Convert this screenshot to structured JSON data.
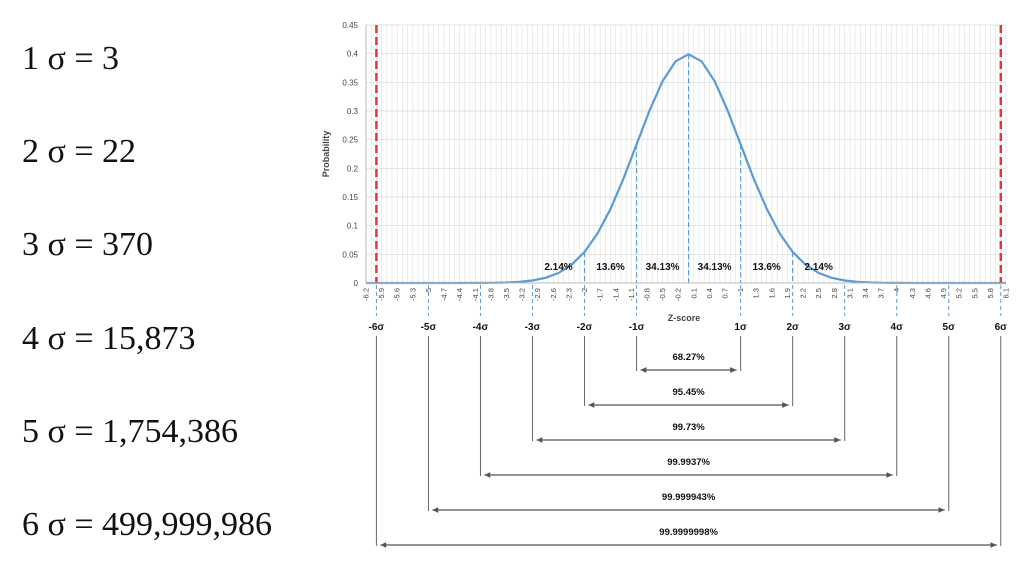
{
  "sigma_list": [
    {
      "label": "1 σ = 3"
    },
    {
      "label": "2 σ = 22"
    },
    {
      "label": "3 σ = 370"
    },
    {
      "label": "4 σ = 15,873"
    },
    {
      "label": "5 σ = 1,754,386"
    },
    {
      "label": "6 σ = 499,999,986"
    }
  ],
  "chart_data": {
    "type": "line",
    "title": "",
    "xlabel": "Z-score",
    "ylabel": "Probability",
    "ylim": [
      0,
      0.45
    ],
    "xlim": [
      -6.2,
      6.1
    ],
    "y_ticks": [
      "0",
      "0.05",
      "0.1",
      "0.15",
      "0.2",
      "0.25",
      "0.3",
      "0.35",
      "0.4",
      "0.45"
    ],
    "x_ticks": [
      "-6.2",
      "-5.9",
      "-5.6",
      "-5.3",
      "-5",
      "-4.7",
      "-4.4",
      "-4.1",
      "-3.8",
      "-3.5",
      "-3.2",
      "-2.9",
      "-2.6",
      "-2.3",
      "-2",
      "-1.7",
      "-1.4",
      "-1.1",
      "-0.8",
      "-0.5",
      "-0.2",
      "0.1",
      "0.4",
      "0.7",
      "1",
      "1.3",
      "1.6",
      "1.9",
      "2.2",
      "2.5",
      "2.8",
      "3.1",
      "3.4",
      "3.7",
      "4",
      "4.3",
      "4.6",
      "4.9",
      "5.2",
      "5.5",
      "5.8",
      "6.1"
    ],
    "grid": true,
    "series": [
      {
        "color": "#5b9bd5",
        "x": [
          -6.2,
          -6,
          -5.5,
          -5,
          -4.5,
          -4,
          -3.75,
          -3.5,
          -3.25,
          -3,
          -2.75,
          -2.5,
          -2.25,
          -2,
          -1.75,
          -1.5,
          -1.25,
          -1,
          -0.75,
          -0.5,
          -0.25,
          0,
          0.25,
          0.5,
          0.75,
          1,
          1.25,
          1.5,
          1.75,
          2,
          2.25,
          2.5,
          2.75,
          3,
          3.25,
          3.5,
          3.75,
          4,
          4.5,
          5,
          5.5,
          6,
          6.1
        ],
        "y": [
          0,
          0,
          0,
          0,
          0,
          0.0001,
          0.0004,
          0.0009,
          0.002,
          0.0044,
          0.0091,
          0.0175,
          0.0317,
          0.054,
          0.0863,
          0.1295,
          0.1826,
          0.242,
          0.3011,
          0.3521,
          0.3867,
          0.3989,
          0.3867,
          0.3521,
          0.3011,
          0.242,
          0.1826,
          0.1295,
          0.0863,
          0.054,
          0.0317,
          0.0175,
          0.0091,
          0.0044,
          0.002,
          0.0009,
          0.0004,
          0.0001,
          0,
          0,
          0,
          0,
          0
        ]
      }
    ],
    "limit_lines": {
      "x": [
        -6,
        6
      ],
      "color": "#e03a2f"
    },
    "band_labels": [
      {
        "x": -2.5,
        "text": "2.14%"
      },
      {
        "x": -1.5,
        "text": "13.6%"
      },
      {
        "x": -0.5,
        "text": "34.13%"
      },
      {
        "x": 0.5,
        "text": "34.13%"
      },
      {
        "x": 1.5,
        "text": "13.6%"
      },
      {
        "x": 2.5,
        "text": "2.14%"
      }
    ],
    "sigma_ticks": [
      {
        "x": -6,
        "label": "-6σ"
      },
      {
        "x": -5,
        "label": "-5σ"
      },
      {
        "x": -4,
        "label": "-4σ"
      },
      {
        "x": -3,
        "label": "-3σ"
      },
      {
        "x": -2,
        "label": "-2σ"
      },
      {
        "x": -1,
        "label": "-1σ"
      },
      {
        "x": 1,
        "label": "1σ"
      },
      {
        "x": 2,
        "label": "2σ"
      },
      {
        "x": 3,
        "label": "3σ"
      },
      {
        "x": 4,
        "label": "4σ"
      },
      {
        "x": 5,
        "label": "5σ"
      },
      {
        "x": 6,
        "label": "6σ"
      }
    ],
    "coverage_ranges": [
      {
        "sigma": 1,
        "label": "68.27%"
      },
      {
        "sigma": 2,
        "label": "95.45%"
      },
      {
        "sigma": 3,
        "label": "99.73%"
      },
      {
        "sigma": 4,
        "label": "99.9937%"
      },
      {
        "sigma": 5,
        "label": "99.999943%"
      },
      {
        "sigma": 6,
        "label": "99.9999998%"
      }
    ]
  }
}
